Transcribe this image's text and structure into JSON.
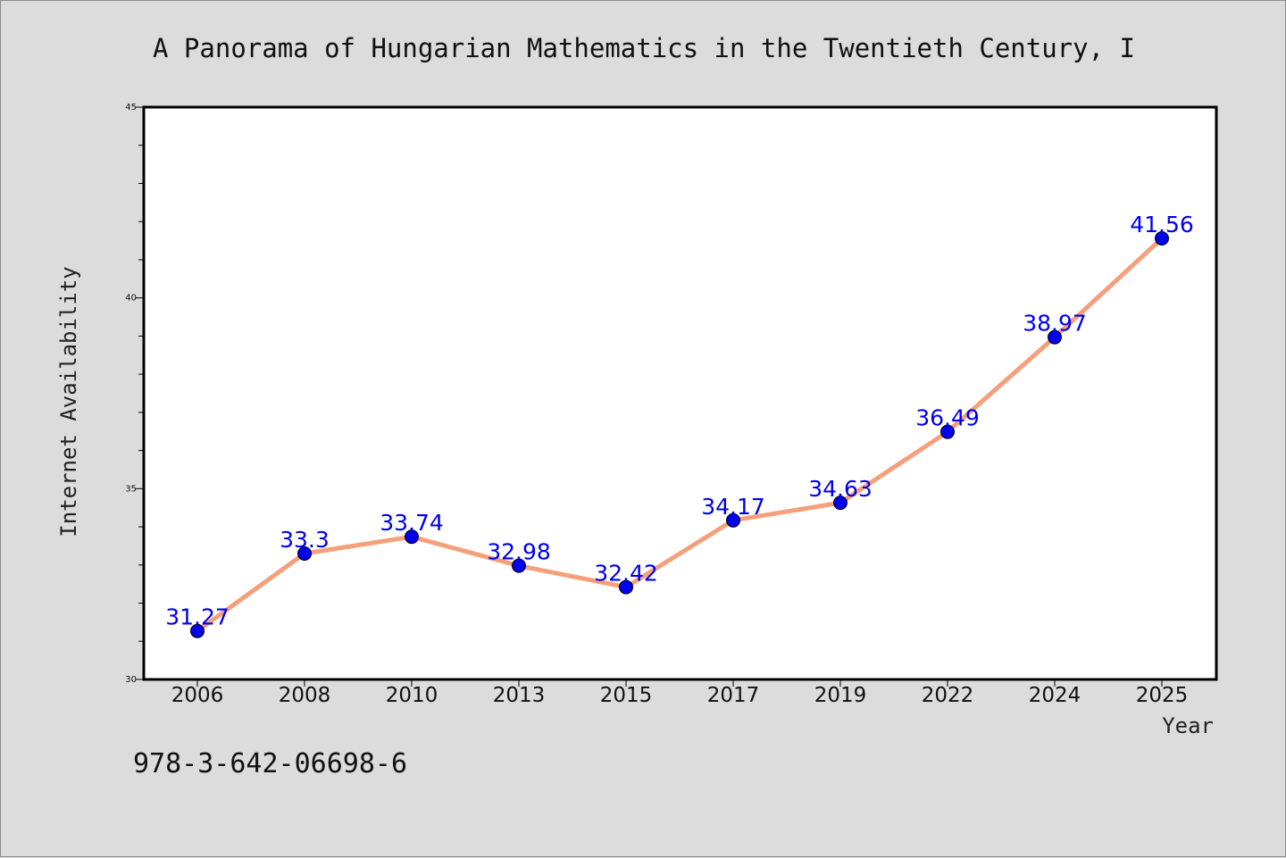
{
  "chart_data": {
    "type": "line",
    "title": "A Panorama of Hungarian Mathematics in the Twentieth Century, I",
    "xlabel": "Year",
    "ylabel": "Internet Availability",
    "categories": [
      "2006",
      "2008",
      "2010",
      "2013",
      "2015",
      "2017",
      "2019",
      "2022",
      "2024",
      "2025"
    ],
    "series": [
      {
        "values": [
          31.27,
          33.3,
          33.74,
          32.98,
          32.42,
          34.17,
          34.63,
          36.49,
          38.97,
          41.56
        ],
        "line_color": "#f5a07a",
        "marker_color": "#0000ee"
      }
    ],
    "data_labels": [
      "31.27",
      "33.3",
      "33.74",
      "32.98",
      "32.42",
      "34.17",
      "34.63",
      "36.49",
      "38.97",
      "41.56"
    ],
    "ylim": [
      30,
      45
    ],
    "yticks": [
      "30",
      "35",
      "40",
      "45"
    ],
    "label_color": "#0000ee",
    "grid": false,
    "legend": "none"
  },
  "footer": {
    "isbn": "978-3-642-06698-6"
  }
}
